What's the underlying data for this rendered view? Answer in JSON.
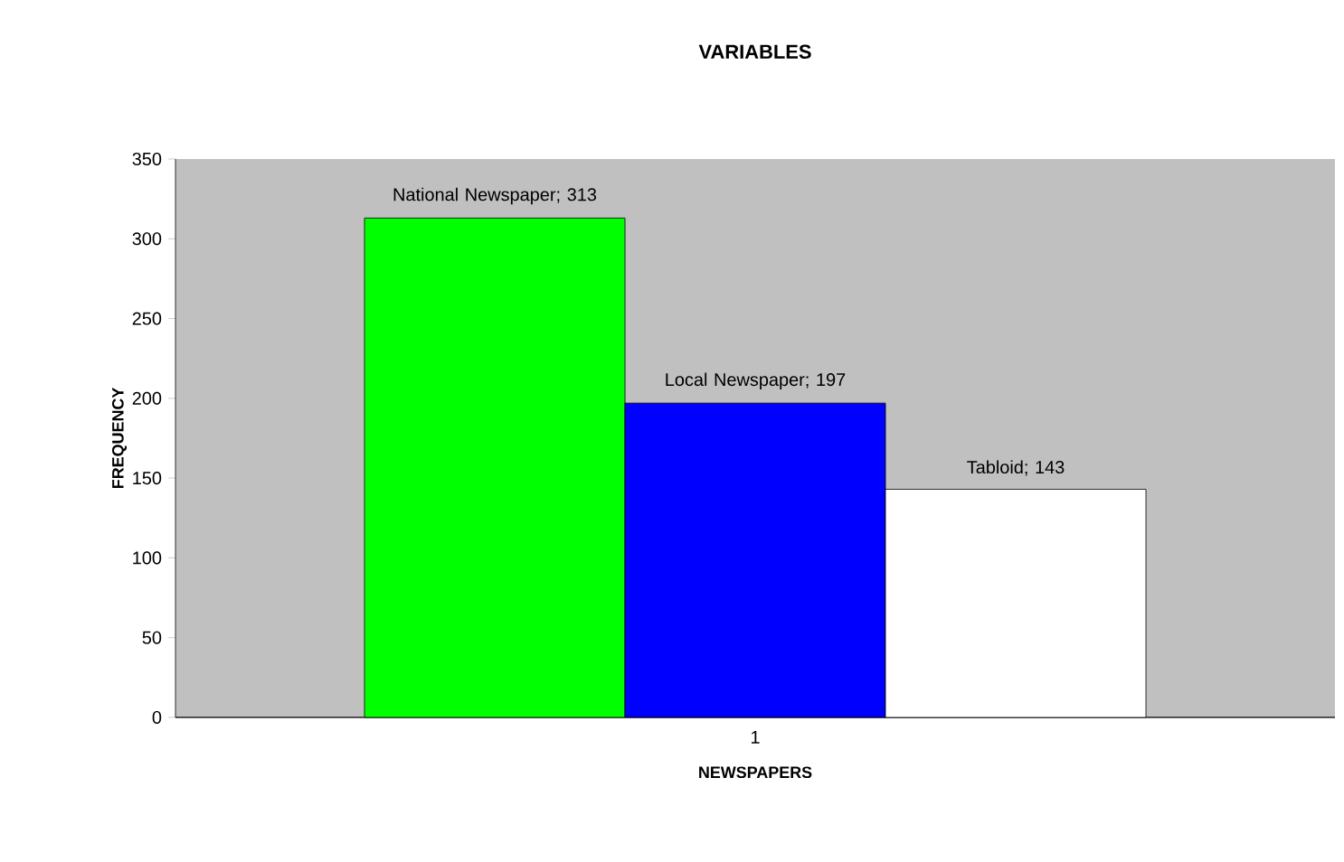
{
  "chart_data": {
    "type": "bar",
    "title": "VARIABLES",
    "xlabel": "NEWSPAPERS",
    "ylabel": "FREQUENCY",
    "categories": [
      "1"
    ],
    "series": [
      {
        "color": "#00ff00",
        "values": [
          313
        ],
        "value_labels": [
          "National Newspaper; 313"
        ]
      },
      {
        "color": "#0000ff",
        "values": [
          197
        ],
        "value_labels": [
          "Local Newspaper; 197"
        ]
      },
      {
        "color": "#ffffff",
        "values": [
          143
        ],
        "value_labels": [
          "Tabloid; 143"
        ]
      }
    ],
    "ylim": [
      0,
      350
    ],
    "yticks": [
      0,
      50,
      100,
      150,
      200,
      250,
      300,
      350
    ],
    "grid": false
  }
}
